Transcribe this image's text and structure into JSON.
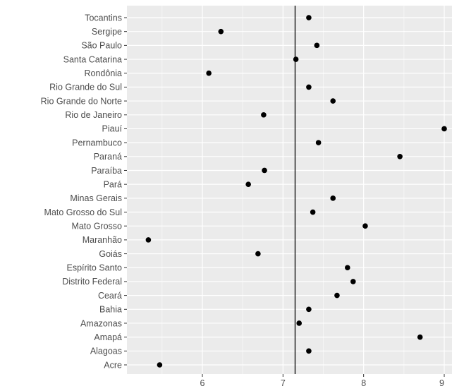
{
  "chart_data": {
    "type": "scatter",
    "title": "",
    "xlabel": "",
    "ylabel": "",
    "xlim": [
      5.15,
      9.05
    ],
    "x_ticks": [
      6,
      7,
      8,
      9
    ],
    "reference_line": 7.15,
    "grid": true,
    "legend": "none",
    "colors": {
      "panel": "#ebebeb",
      "grid_major": "#ffffff",
      "grid_minor": "#f5f5f5",
      "point": "#000000",
      "reference_line": "#000000",
      "tick_text": "#4d4d4d"
    },
    "categories": [
      "Tocantins",
      "Sergipe",
      "São Paulo",
      "Santa Catarina",
      "Rondônia",
      "Rio Grande do Sul",
      "Rio Grande do Norte",
      "Rio de Janeiro",
      "Piauí",
      "Pernambuco",
      "Paraná",
      "Paraíba",
      "Pará",
      "Minas Gerais",
      "Mato Grosso do Sul",
      "Mato Grosso",
      "Maranhão",
      "Goiás",
      "Espírito Santo",
      "Distrito Federal",
      "Ceará",
      "Bahia",
      "Amazonas",
      "Amapá",
      "Alagoas",
      "Acre"
    ],
    "values": [
      7.32,
      6.23,
      7.42,
      7.16,
      6.08,
      7.32,
      7.62,
      6.76,
      9.0,
      7.44,
      8.45,
      6.77,
      6.57,
      7.62,
      7.37,
      8.02,
      5.33,
      6.69,
      7.8,
      7.87,
      7.67,
      7.32,
      7.2,
      8.7,
      7.32,
      5.47
    ]
  }
}
